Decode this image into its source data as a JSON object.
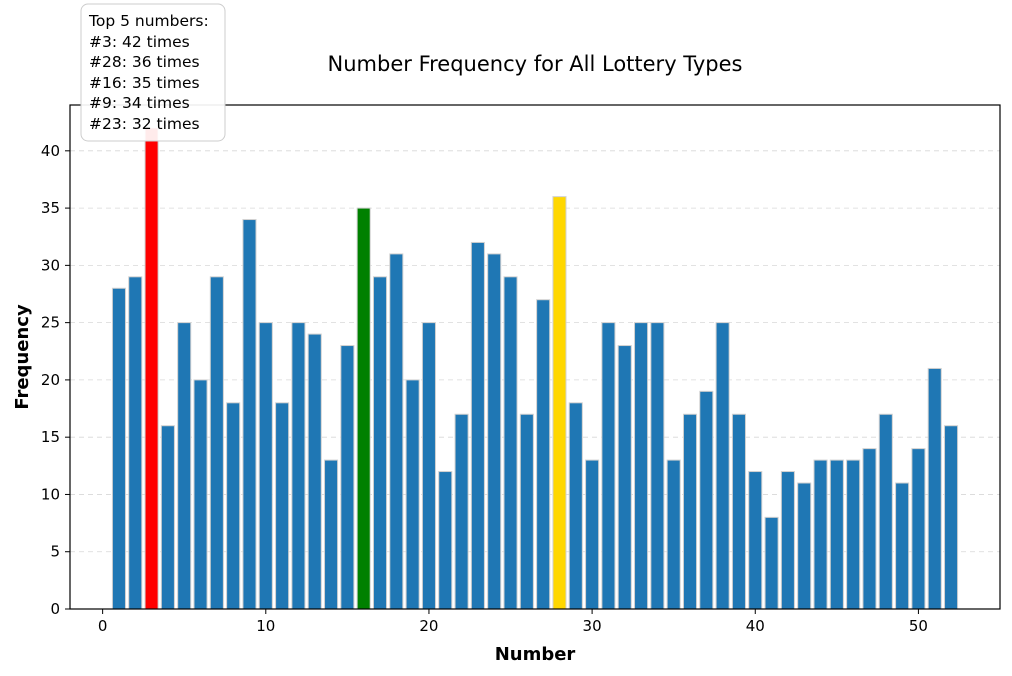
{
  "chart_data": {
    "type": "bar",
    "title": "Number Frequency for All Lottery Types",
    "xlabel": "Number",
    "ylabel": "Frequency",
    "xlim": [
      -2,
      55
    ],
    "ylim": [
      0,
      44
    ],
    "x_ticks": [
      0,
      10,
      20,
      30,
      40,
      50
    ],
    "y_ticks": [
      0,
      5,
      10,
      15,
      20,
      25,
      30,
      35,
      40
    ],
    "grid": "horizontal dashed",
    "bar_color": "#1f77b4",
    "bar_edge_color": "#d0d0d0",
    "x": [
      1,
      2,
      3,
      4,
      5,
      6,
      7,
      8,
      9,
      10,
      11,
      12,
      13,
      14,
      15,
      16,
      17,
      18,
      19,
      20,
      21,
      22,
      23,
      24,
      25,
      26,
      27,
      28,
      29,
      30,
      31,
      32,
      33,
      34,
      35,
      36,
      37,
      38,
      39,
      40,
      41,
      42,
      43,
      44,
      45,
      46,
      47,
      48,
      49,
      50,
      51,
      52
    ],
    "values": [
      28,
      29,
      42,
      16,
      25,
      20,
      29,
      18,
      34,
      25,
      18,
      25,
      24,
      13,
      23,
      35,
      29,
      31,
      20,
      25,
      12,
      17,
      32,
      31,
      29,
      17,
      27,
      36,
      18,
      13,
      25,
      23,
      25,
      25,
      13,
      17,
      19,
      25,
      17,
      12,
      8,
      12,
      11,
      13,
      13,
      13,
      14,
      17,
      11,
      14,
      21,
      16
    ],
    "highlights": [
      {
        "number": 3,
        "color": "#ff0000"
      },
      {
        "number": 16,
        "color": "#008000"
      },
      {
        "number": 28,
        "color": "#ffd700"
      }
    ],
    "annotation": {
      "lines": [
        "Top 5 numbers:",
        "#3: 42 times",
        "#28: 36 times",
        "#16: 35 times",
        "#9: 34 times",
        "#23: 32 times"
      ]
    }
  }
}
